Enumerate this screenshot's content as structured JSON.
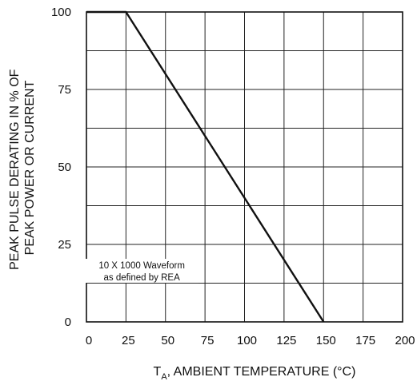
{
  "chart_data": {
    "type": "line",
    "title": "",
    "xlabel_main": "T",
    "xlabel_sub": "A",
    "xlabel_rest": ", AMBIENT TEMPERATURE (°C)",
    "ylabel_lines": [
      "PEAK PULSE DERATING IN % OF",
      "PEAK POWER OR CURRENT"
    ],
    "xlim": [
      0,
      200
    ],
    "ylim": [
      0,
      100
    ],
    "x_ticks": [
      0,
      25,
      50,
      75,
      100,
      125,
      150,
      175,
      200
    ],
    "y_ticks": [
      0,
      25,
      50,
      75,
      100
    ],
    "x_grid": [
      0,
      25,
      50,
      75,
      100,
      125,
      150,
      175,
      200
    ],
    "y_grid": [
      0,
      12.5,
      25,
      37.5,
      50,
      62.5,
      75,
      87.5,
      100
    ],
    "grid": true,
    "series": [
      {
        "x": [
          0,
          25,
          150
        ],
        "y": [
          100,
          100,
          0
        ]
      }
    ],
    "annotation": {
      "lines": [
        "10 X 1000 Waveform",
        "as defined by REA"
      ],
      "x": 35,
      "y": 17
    }
  }
}
